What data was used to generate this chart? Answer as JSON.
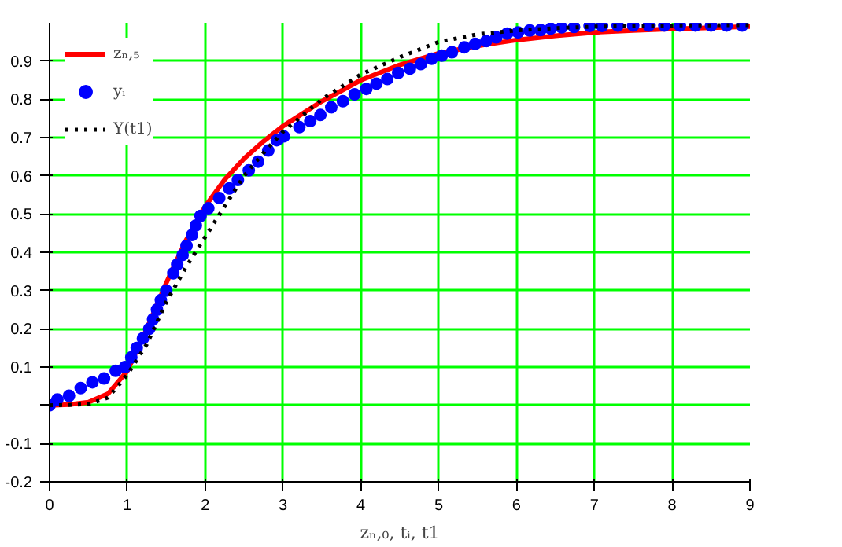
{
  "chart_data": {
    "type": "line",
    "xlabel": "zₙ,₀, tᵢ, t1",
    "xlim": [
      0,
      9
    ],
    "ylim": [
      -0.2,
      1.0
    ],
    "xticks": [
      0,
      1,
      2,
      3,
      4,
      5,
      6,
      7,
      8,
      9
    ],
    "yticks": [
      -0.2,
      -0.1,
      {
        "value": 0,
        "label": null
      },
      0.1,
      0.2,
      0.3,
      0.4,
      0.5,
      0.6,
      0.7,
      0.8,
      0.9
    ],
    "grid": true,
    "legend": "top left",
    "series": [
      {
        "name": "zₙ,₅",
        "color": "#ff0000",
        "line_style": "solid",
        "x": [
          0,
          0.25,
          0.5,
          0.75,
          1,
          1.25,
          1.5,
          1.75,
          2,
          2.25,
          2.5,
          2.75,
          3,
          3.5,
          4,
          4.5,
          5,
          5.5,
          6,
          6.5,
          7,
          7.5,
          8,
          8.5,
          9
        ],
        "values": [
          0,
          0.002,
          0.008,
          0.03,
          0.09,
          0.2,
          0.32,
          0.43,
          0.52,
          0.59,
          0.645,
          0.69,
          0.73,
          0.795,
          0.85,
          0.89,
          0.92,
          0.94,
          0.955,
          0.966,
          0.975,
          0.98,
          0.984,
          0.987,
          0.99
        ]
      },
      {
        "name": "yᵢ",
        "type": "scatter",
        "color": "#0000ff",
        "marker": "circle",
        "x": [
          0,
          0.1,
          0.25,
          0.4,
          0.55,
          0.7,
          0.85,
          0.97,
          1.05,
          1.12,
          1.2,
          1.28,
          1.33,
          1.38,
          1.43,
          1.5,
          1.59,
          1.64,
          1.71,
          1.76,
          1.83,
          1.88,
          1.94,
          2.04,
          2.18,
          2.31,
          2.42,
          2.56,
          2.68,
          2.81,
          2.92,
          3.01,
          3.21,
          3.35,
          3.48,
          3.62,
          3.77,
          3.92,
          4.07,
          4.2,
          4.34,
          4.48,
          4.63,
          4.77,
          4.91,
          5.04,
          5.17,
          5.33,
          5.47,
          5.61,
          5.74,
          5.88,
          6.02,
          6.17,
          6.31,
          6.44,
          6.58,
          6.74,
          6.94,
          7.1,
          7.3,
          7.5,
          7.7,
          7.9,
          8.1,
          8.3,
          8.5,
          8.7,
          8.9
        ],
        "values": [
          0,
          0.015,
          0.025,
          0.045,
          0.06,
          0.07,
          0.09,
          0.1,
          0.125,
          0.15,
          0.175,
          0.2,
          0.225,
          0.25,
          0.275,
          0.3,
          0.345,
          0.368,
          0.393,
          0.417,
          0.445,
          0.47,
          0.495,
          0.515,
          0.542,
          0.567,
          0.589,
          0.614,
          0.637,
          0.666,
          0.693,
          0.703,
          0.727,
          0.743,
          0.759,
          0.779,
          0.795,
          0.813,
          0.827,
          0.841,
          0.853,
          0.869,
          0.88,
          0.892,
          0.906,
          0.914,
          0.923,
          0.936,
          0.945,
          0.952,
          0.962,
          0.972,
          0.975,
          0.98,
          0.981,
          0.985,
          0.988,
          0.989,
          0.992,
          0.992,
          0.993,
          0.993,
          0.993,
          0.993,
          0.993,
          0.993,
          0.993,
          0.993,
          0.993
        ]
      },
      {
        "name": "Y(t1)",
        "color": "#000000",
        "line_style": "dotted",
        "x": [
          0,
          0.25,
          0.5,
          0.75,
          1,
          1.25,
          1.5,
          1.75,
          2,
          2.25,
          2.5,
          2.75,
          3,
          3.5,
          4,
          4.5,
          5,
          5.5,
          6,
          6.5,
          7,
          8,
          9
        ],
        "values": [
          0,
          0.001,
          0.003,
          0.02,
          0.08,
          0.16,
          0.27,
          0.36,
          0.44,
          0.52,
          0.6,
          0.66,
          0.715,
          0.8,
          0.865,
          0.91,
          0.95,
          0.97,
          0.98,
          0.986,
          0.99,
          0.993,
          0.994
        ]
      }
    ]
  }
}
